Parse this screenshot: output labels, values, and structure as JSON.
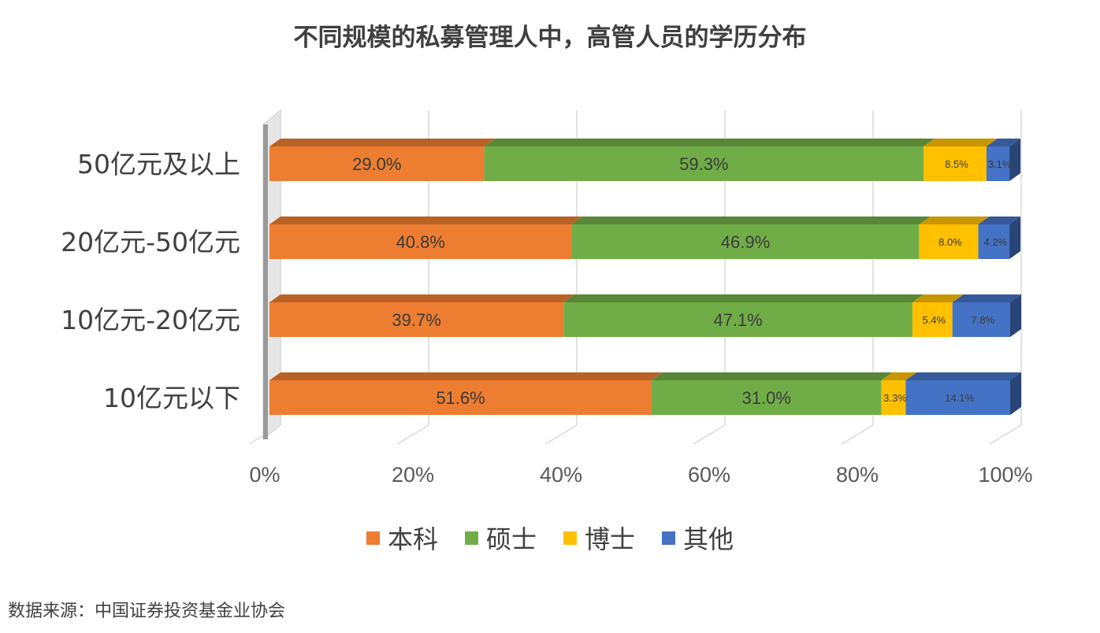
{
  "title": "不同规模的私募管理人中，高管人员的学历分布",
  "source": "数据来源：中国证券投资基金业协会",
  "colors": {
    "本科": "#ED7D31",
    "硕士": "#70AD47",
    "博士": "#FFC000",
    "其他": "#4472C4"
  },
  "chart_data": {
    "type": "bar",
    "orientation": "horizontal",
    "stacked": "percent",
    "style": "3d",
    "title": "不同规模的私募管理人中，高管人员的学历分布",
    "categories": [
      "50亿元及以上",
      "20亿元-50亿元",
      "10亿元-20亿元",
      "10亿元以下"
    ],
    "series": [
      {
        "name": "本科",
        "values": [
          29.0,
          40.8,
          39.7,
          51.6
        ],
        "labels": [
          "29.0%",
          "40.8%",
          "39.7%",
          "51.6%"
        ]
      },
      {
        "name": "硕士",
        "values": [
          59.3,
          46.9,
          47.1,
          31.0
        ],
        "labels": [
          "59.3%",
          "46.9%",
          "47.1%",
          "31.0%"
        ]
      },
      {
        "name": "博士",
        "values": [
          8.5,
          8.0,
          5.4,
          3.3
        ],
        "labels": [
          "8.5%",
          "8.0%",
          "5.4%",
          "3.3%"
        ]
      },
      {
        "name": "其他",
        "values": [
          3.1,
          4.2,
          7.8,
          14.1
        ],
        "labels": [
          "3.1%",
          "4.2%",
          "7.8%",
          "14.1%"
        ]
      }
    ],
    "x_ticks": [
      "0%",
      "20%",
      "40%",
      "60%",
      "80%",
      "100%"
    ],
    "xlim": [
      0,
      100
    ],
    "grid": true,
    "legend_position": "bottom"
  }
}
